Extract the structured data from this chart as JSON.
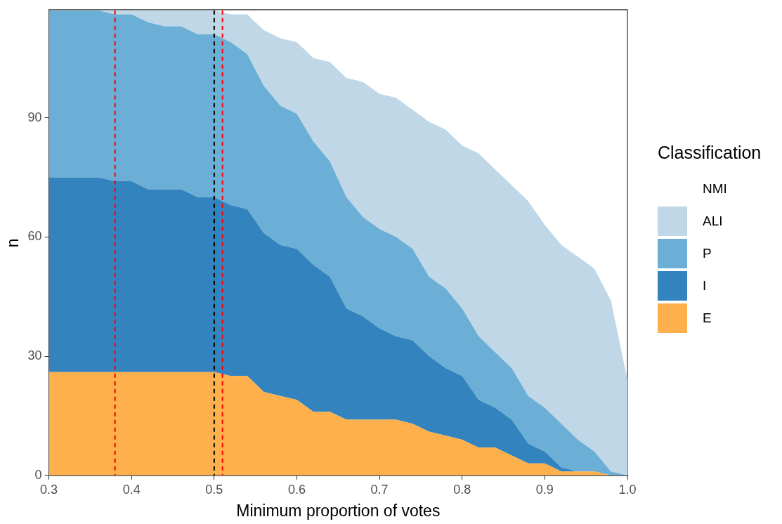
{
  "chart_data": {
    "type": "area",
    "xlabel": "Minimum proportion of votes",
    "ylabel": "n",
    "legend_title": "Classification",
    "x": [
      0.3,
      0.32,
      0.34,
      0.36,
      0.38,
      0.4,
      0.42,
      0.44,
      0.46,
      0.48,
      0.5,
      0.52,
      0.54,
      0.56,
      0.58,
      0.6,
      0.62,
      0.64,
      0.66,
      0.68,
      0.7,
      0.72,
      0.74,
      0.76,
      0.78,
      0.8,
      0.82,
      0.84,
      0.86,
      0.88,
      0.9,
      0.92,
      0.94,
      0.96,
      0.98,
      1.0
    ],
    "stacked": true,
    "series": [
      {
        "name": "E",
        "color": "#fdb04b",
        "values": [
          26,
          26,
          26,
          26,
          26,
          26,
          26,
          26,
          26,
          26,
          26,
          25,
          25,
          21,
          20,
          19,
          16,
          16,
          14,
          14,
          14,
          14,
          13,
          11,
          10,
          9,
          7,
          7,
          5,
          3,
          3,
          1,
          1,
          1,
          0,
          0
        ]
      },
      {
        "name": "I",
        "color": "#3383be",
        "values": [
          49,
          49,
          49,
          49,
          48,
          48,
          46,
          46,
          46,
          44,
          44,
          43,
          42,
          40,
          38,
          38,
          37,
          34,
          28,
          26,
          23,
          21,
          21,
          19,
          17,
          16,
          12,
          10,
          9,
          5,
          3,
          1,
          0,
          0,
          0,
          0
        ]
      },
      {
        "name": "P",
        "color": "#6baed6",
        "values": [
          42,
          42,
          42,
          42,
          42,
          42,
          42,
          41,
          41,
          41,
          41,
          41,
          39,
          37,
          35,
          34,
          31,
          29,
          28,
          25,
          25,
          25,
          23,
          20,
          20,
          17,
          16,
          14,
          13,
          12,
          11,
          11,
          8,
          5,
          1,
          0
        ]
      },
      {
        "name": "ALI",
        "color": "#bfd7e6",
        "values": [
          null,
          null,
          null,
          0,
          1,
          1,
          3,
          4,
          4,
          6,
          6,
          7,
          10,
          14,
          17,
          18,
          21,
          25,
          30,
          34,
          34,
          35,
          35,
          39,
          40,
          41,
          46,
          46,
          46,
          49,
          46,
          45,
          46,
          46,
          43,
          24
        ]
      },
      {
        "name": "NMI",
        "values": [
          null,
          null,
          null,
          null,
          null,
          null,
          null,
          null,
          null,
          null,
          null,
          null,
          null,
          null,
          null,
          null,
          null,
          null,
          null,
          null,
          null,
          null,
          null,
          null,
          null,
          null,
          null,
          null,
          null,
          null,
          null,
          null,
          null,
          null,
          null,
          null
        ]
      }
    ],
    "xlim": [
      0.3,
      1.0
    ],
    "xticks": [
      0.3,
      0.4,
      0.5,
      0.6,
      0.7,
      0.8,
      0.9,
      {
        "value": 1.0,
        "label": "1.0"
      }
    ],
    "ylim": [
      0,
      117
    ],
    "yticks": [
      0,
      30,
      60,
      90
    ],
    "grid": false,
    "legend": "right",
    "ref_lines": [
      {
        "axis": "x",
        "value": 0.38,
        "color": "#ff0000",
        "line_style": "dashed"
      },
      {
        "axis": "x",
        "value": 0.5,
        "color": "#000000",
        "line_style": "dashed"
      },
      {
        "axis": "x",
        "value": 0.51,
        "color": "#ff0000",
        "line_style": "dashed"
      }
    ]
  }
}
